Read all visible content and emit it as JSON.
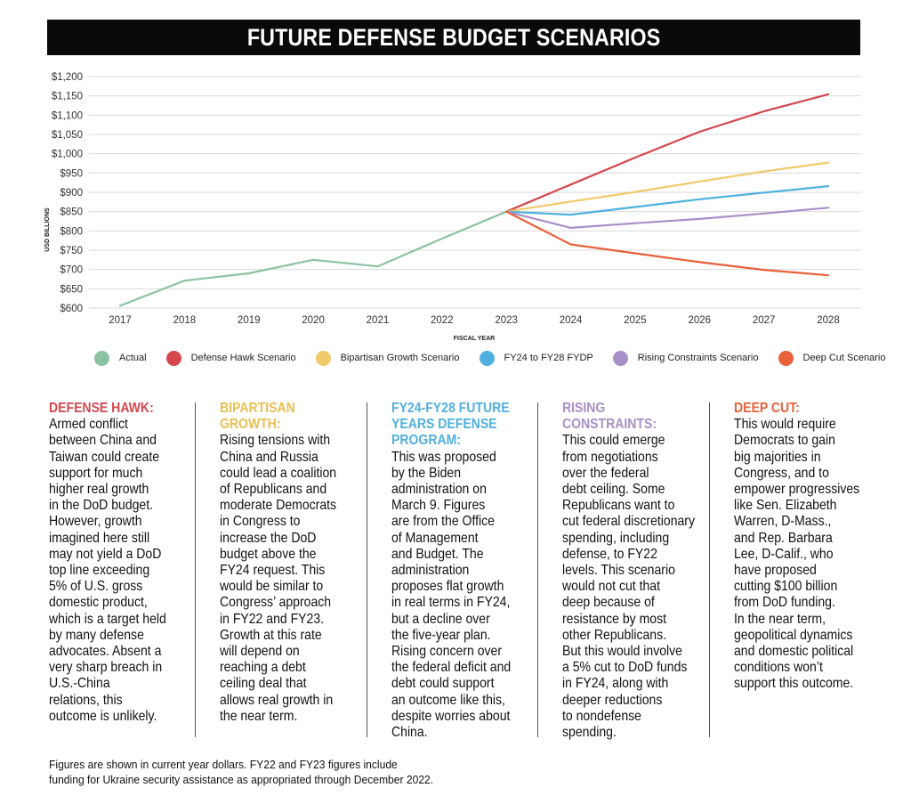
{
  "title": "FUTURE DEFENSE BUDGET SCENARIOS",
  "chart_data": {
    "type": "line",
    "xlabel": "FISCAL YEAR",
    "ylabel": "USD BILLIONS",
    "ylim": [
      600,
      1200
    ],
    "yticks": [
      "$600",
      "$650",
      "$700",
      "$750",
      "$800",
      "$850",
      "$900",
      "$950",
      "$1,000",
      "$1,050",
      "$1,100",
      "$1,150",
      "$1,200"
    ],
    "ytick_values": [
      600,
      650,
      700,
      750,
      800,
      850,
      900,
      950,
      1000,
      1050,
      1100,
      1150,
      1200
    ],
    "categories": [
      "2017",
      "2018",
      "2019",
      "2020",
      "2021",
      "2022",
      "2023",
      "2024",
      "2025",
      "2026",
      "2027",
      "2028"
    ],
    "grid": true,
    "legend_position": "bottom",
    "series": [
      {
        "name": "Actual",
        "color": "#8cc2a3",
        "x": [
          "2017",
          "2018",
          "2019",
          "2020",
          "2021",
          "2022",
          "2023"
        ],
        "values": [
          606,
          671,
          690,
          725,
          708,
          780,
          850
        ]
      },
      {
        "name": "Defense Hawk Scenario",
        "color": "#d4484e",
        "x": [
          "2023",
          "2024",
          "2025",
          "2026",
          "2027",
          "2028"
        ],
        "values": [
          850,
          920,
          990,
          1057,
          1110,
          1154
        ]
      },
      {
        "name": "Bipartisan Growth Scenario",
        "color": "#f0c96b",
        "x": [
          "2023",
          "2024",
          "2025",
          "2026",
          "2027",
          "2028"
        ],
        "values": [
          850,
          876,
          901,
          928,
          954,
          977
        ]
      },
      {
        "name": "FY24 to FY28 FYDP",
        "color": "#4fb0df",
        "x": [
          "2023",
          "2024",
          "2025",
          "2026",
          "2027",
          "2028"
        ],
        "values": [
          850,
          842,
          862,
          882,
          899,
          916
        ]
      },
      {
        "name": "Rising Constraints Scenario",
        "color": "#a98fc7",
        "x": [
          "2023",
          "2024",
          "2025",
          "2026",
          "2027",
          "2028"
        ],
        "values": [
          850,
          808,
          820,
          831,
          845,
          860
        ]
      },
      {
        "name": "Deep Cut Scenario",
        "color": "#e8613a",
        "x": [
          "2023",
          "2024",
          "2025",
          "2026",
          "2027",
          "2028"
        ],
        "values": [
          850,
          765,
          742,
          719,
          699,
          685
        ]
      }
    ]
  },
  "columns": [
    {
      "heading": "DEFENSE HAWK:",
      "color": "#d4484e",
      "lines": [
        "Armed conflict",
        "between China and",
        "Taiwan could create",
        "support for much",
        "higher real growth",
        "in the DoD budget.",
        "However, growth",
        "imagined here still",
        "may not yield a DoD",
        "top line exceeding",
        "5% of U.S. gross",
        "domestic product,",
        "which is a target held",
        "by many defense",
        "advocates. Absent a",
        "very sharp breach in",
        "U.S.-China",
        "relations, this",
        "outcome is unlikely."
      ]
    },
    {
      "heading": "BIPARTISAN GROWTH:",
      "color": "#e9bf52",
      "lines": [
        "Rising tensions with",
        "China and Russia",
        "could lead a coalition",
        "of Republicans and",
        "moderate Democrats",
        "in Congress to",
        "increase the DoD",
        "budget above the",
        "FY24 request. This",
        "would be similar to",
        "Congress’ approach",
        "in FY22 and FY23.",
        "Growth at this rate",
        "will depend on",
        "reaching a debt",
        "ceiling deal that",
        "allows real growth in",
        "the near term."
      ]
    },
    {
      "heading": "FY24-FY28 FUTURE YEARS DEFENSE PROGRAM:",
      "color": "#4fb0df",
      "lines": [
        "This was proposed",
        "by the Biden",
        "administration on",
        "March 9. Figures",
        "are from the Office",
        "of Management",
        "and Budget. The",
        "administration",
        "proposes flat growth",
        "in real terms in FY24,",
        "but a decline over",
        "the five-year plan.",
        "Rising concern over",
        "the federal deficit and",
        "debt could support",
        "an outcome like this,",
        "despite worries about",
        "China."
      ]
    },
    {
      "heading": "RISING CONSTRAINTS:",
      "color": "#a98fc7",
      "lines": [
        "This could emerge",
        "from negotiations",
        "over the federal",
        "debt ceiling. Some",
        "Republicans want to",
        "cut federal discretionary",
        "spending, including",
        "defense, to FY22",
        "levels. This scenario",
        "would not cut that",
        "deep because of",
        "resistance by most",
        "other Republicans.",
        "But this would involve",
        "a 5% cut to DoD funds",
        "in FY24, along with",
        "deeper reductions",
        "to nondefense",
        "spending."
      ]
    },
    {
      "heading": "DEEP CUT:",
      "color": "#e8613a",
      "lines": [
        "This would require",
        "Democrats to gain",
        "big majorities in",
        "Congress, and to",
        "empower progressives",
        "like Sen. Elizabeth",
        "Warren, D-Mass.,",
        "and Rep. Barbara",
        "Lee, D-Calif., who",
        "have proposed",
        "cutting $100 billion",
        "from DoD funding.",
        "In the near term,",
        "geopolitical dynamics",
        "and domestic political",
        "conditions won’t",
        "support this outcome."
      ]
    }
  ],
  "footnote": {
    "line1": "Figures are shown in current year dollars. FY22 and FY23 figures include",
    "line2": "funding for Ukraine security assistance as appropriated through December 2022."
  }
}
